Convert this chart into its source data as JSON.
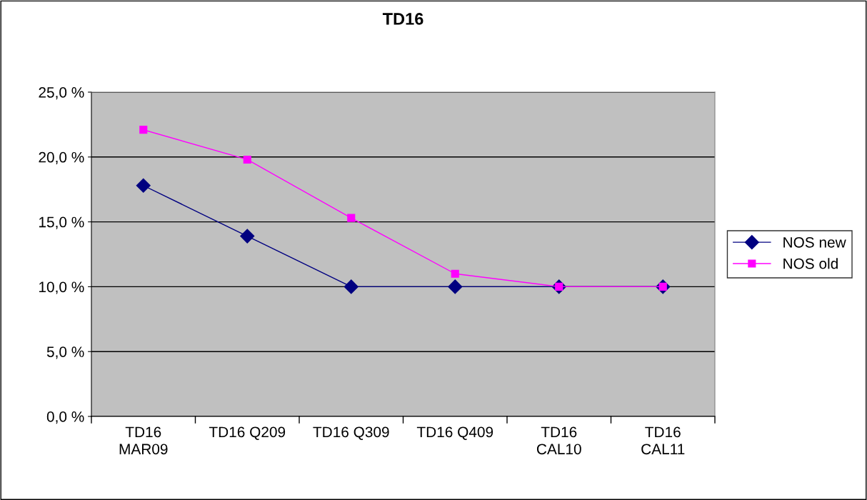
{
  "chart_data": {
    "type": "line",
    "title": "TD16",
    "categories": [
      "TD16\nMAR09",
      "TD16 Q209",
      "TD16 Q309",
      "TD16 Q409",
      "TD16\nCAL10",
      "TD16\nCAL11"
    ],
    "series": [
      {
        "name": "NOS new",
        "color": "#000080",
        "marker": "diamond",
        "values": [
          17.8,
          13.9,
          10.0,
          10.0,
          10.0,
          10.0
        ]
      },
      {
        "name": "NOS old",
        "color": "#ff00ff",
        "marker": "square",
        "values": [
          22.1,
          19.8,
          15.3,
          11.0,
          10.0,
          10.0
        ]
      }
    ],
    "ylim": [
      0,
      25
    ],
    "yticks": [
      {
        "value": 0,
        "label": "0,0 %"
      },
      {
        "value": 5,
        "label": "5,0 %"
      },
      {
        "value": 10,
        "label": "10,0 %"
      },
      {
        "value": 15,
        "label": "15,0 %"
      },
      {
        "value": 20,
        "label": "20,0 %"
      },
      {
        "value": 25,
        "label": "25,0 %"
      }
    ],
    "grid": "y",
    "legend": "right",
    "line_style": "solid"
  }
}
